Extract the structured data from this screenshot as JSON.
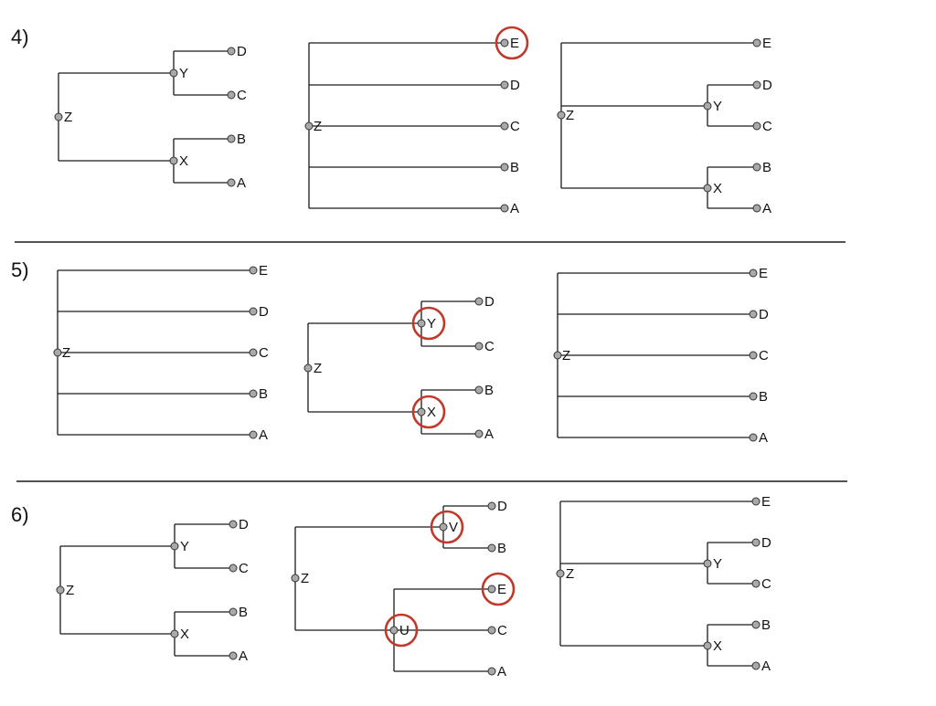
{
  "styles": {
    "node_fill": "#a9a9a9",
    "line_color": "#1a1a1a",
    "highlight_color": "#c0392b"
  },
  "rows": [
    {
      "label": "4)",
      "trees": [
        {
          "nodes": {
            "Z": "Z",
            "Y": "Y",
            "X": "X",
            "D": "D",
            "C": "C",
            "B": "B",
            "A": "A"
          },
          "highlighted": []
        },
        {
          "nodes": {
            "Z": "Z",
            "E": "E",
            "D": "D",
            "C": "C",
            "B": "B",
            "A": "A"
          },
          "highlighted": [
            "E"
          ]
        },
        {
          "nodes": {
            "Z": "Z",
            "Y": "Y",
            "X": "X",
            "E": "E",
            "D": "D",
            "C": "C",
            "B": "B",
            "A": "A"
          },
          "highlighted": []
        }
      ]
    },
    {
      "label": "5)",
      "trees": [
        {
          "nodes": {
            "Z": "Z",
            "E": "E",
            "D": "D",
            "C": "C",
            "B": "B",
            "A": "A"
          },
          "highlighted": []
        },
        {
          "nodes": {
            "Z": "Z",
            "Y": "Y",
            "X": "X",
            "D": "D",
            "C": "C",
            "B": "B",
            "A": "A"
          },
          "highlighted": [
            "Y",
            "X"
          ]
        },
        {
          "nodes": {
            "Z": "Z",
            "E": "E",
            "D": "D",
            "C": "C",
            "B": "B",
            "A": "A"
          },
          "highlighted": []
        }
      ]
    },
    {
      "label": "6)",
      "trees": [
        {
          "nodes": {
            "Z": "Z",
            "Y": "Y",
            "X": "X",
            "D": "D",
            "C": "C",
            "B": "B",
            "A": "A"
          },
          "highlighted": []
        },
        {
          "nodes": {
            "Z": "Z",
            "V": "V",
            "U": "U",
            "D": "D",
            "B": "B",
            "E": "E",
            "C": "C",
            "A": "A"
          },
          "highlighted": [
            "V",
            "E",
            "U"
          ]
        },
        {
          "nodes": {
            "Z": "Z",
            "Y": "Y",
            "X": "X",
            "E": "E",
            "D": "D",
            "C": "C",
            "B": "B",
            "A": "A"
          },
          "highlighted": []
        }
      ]
    }
  ]
}
